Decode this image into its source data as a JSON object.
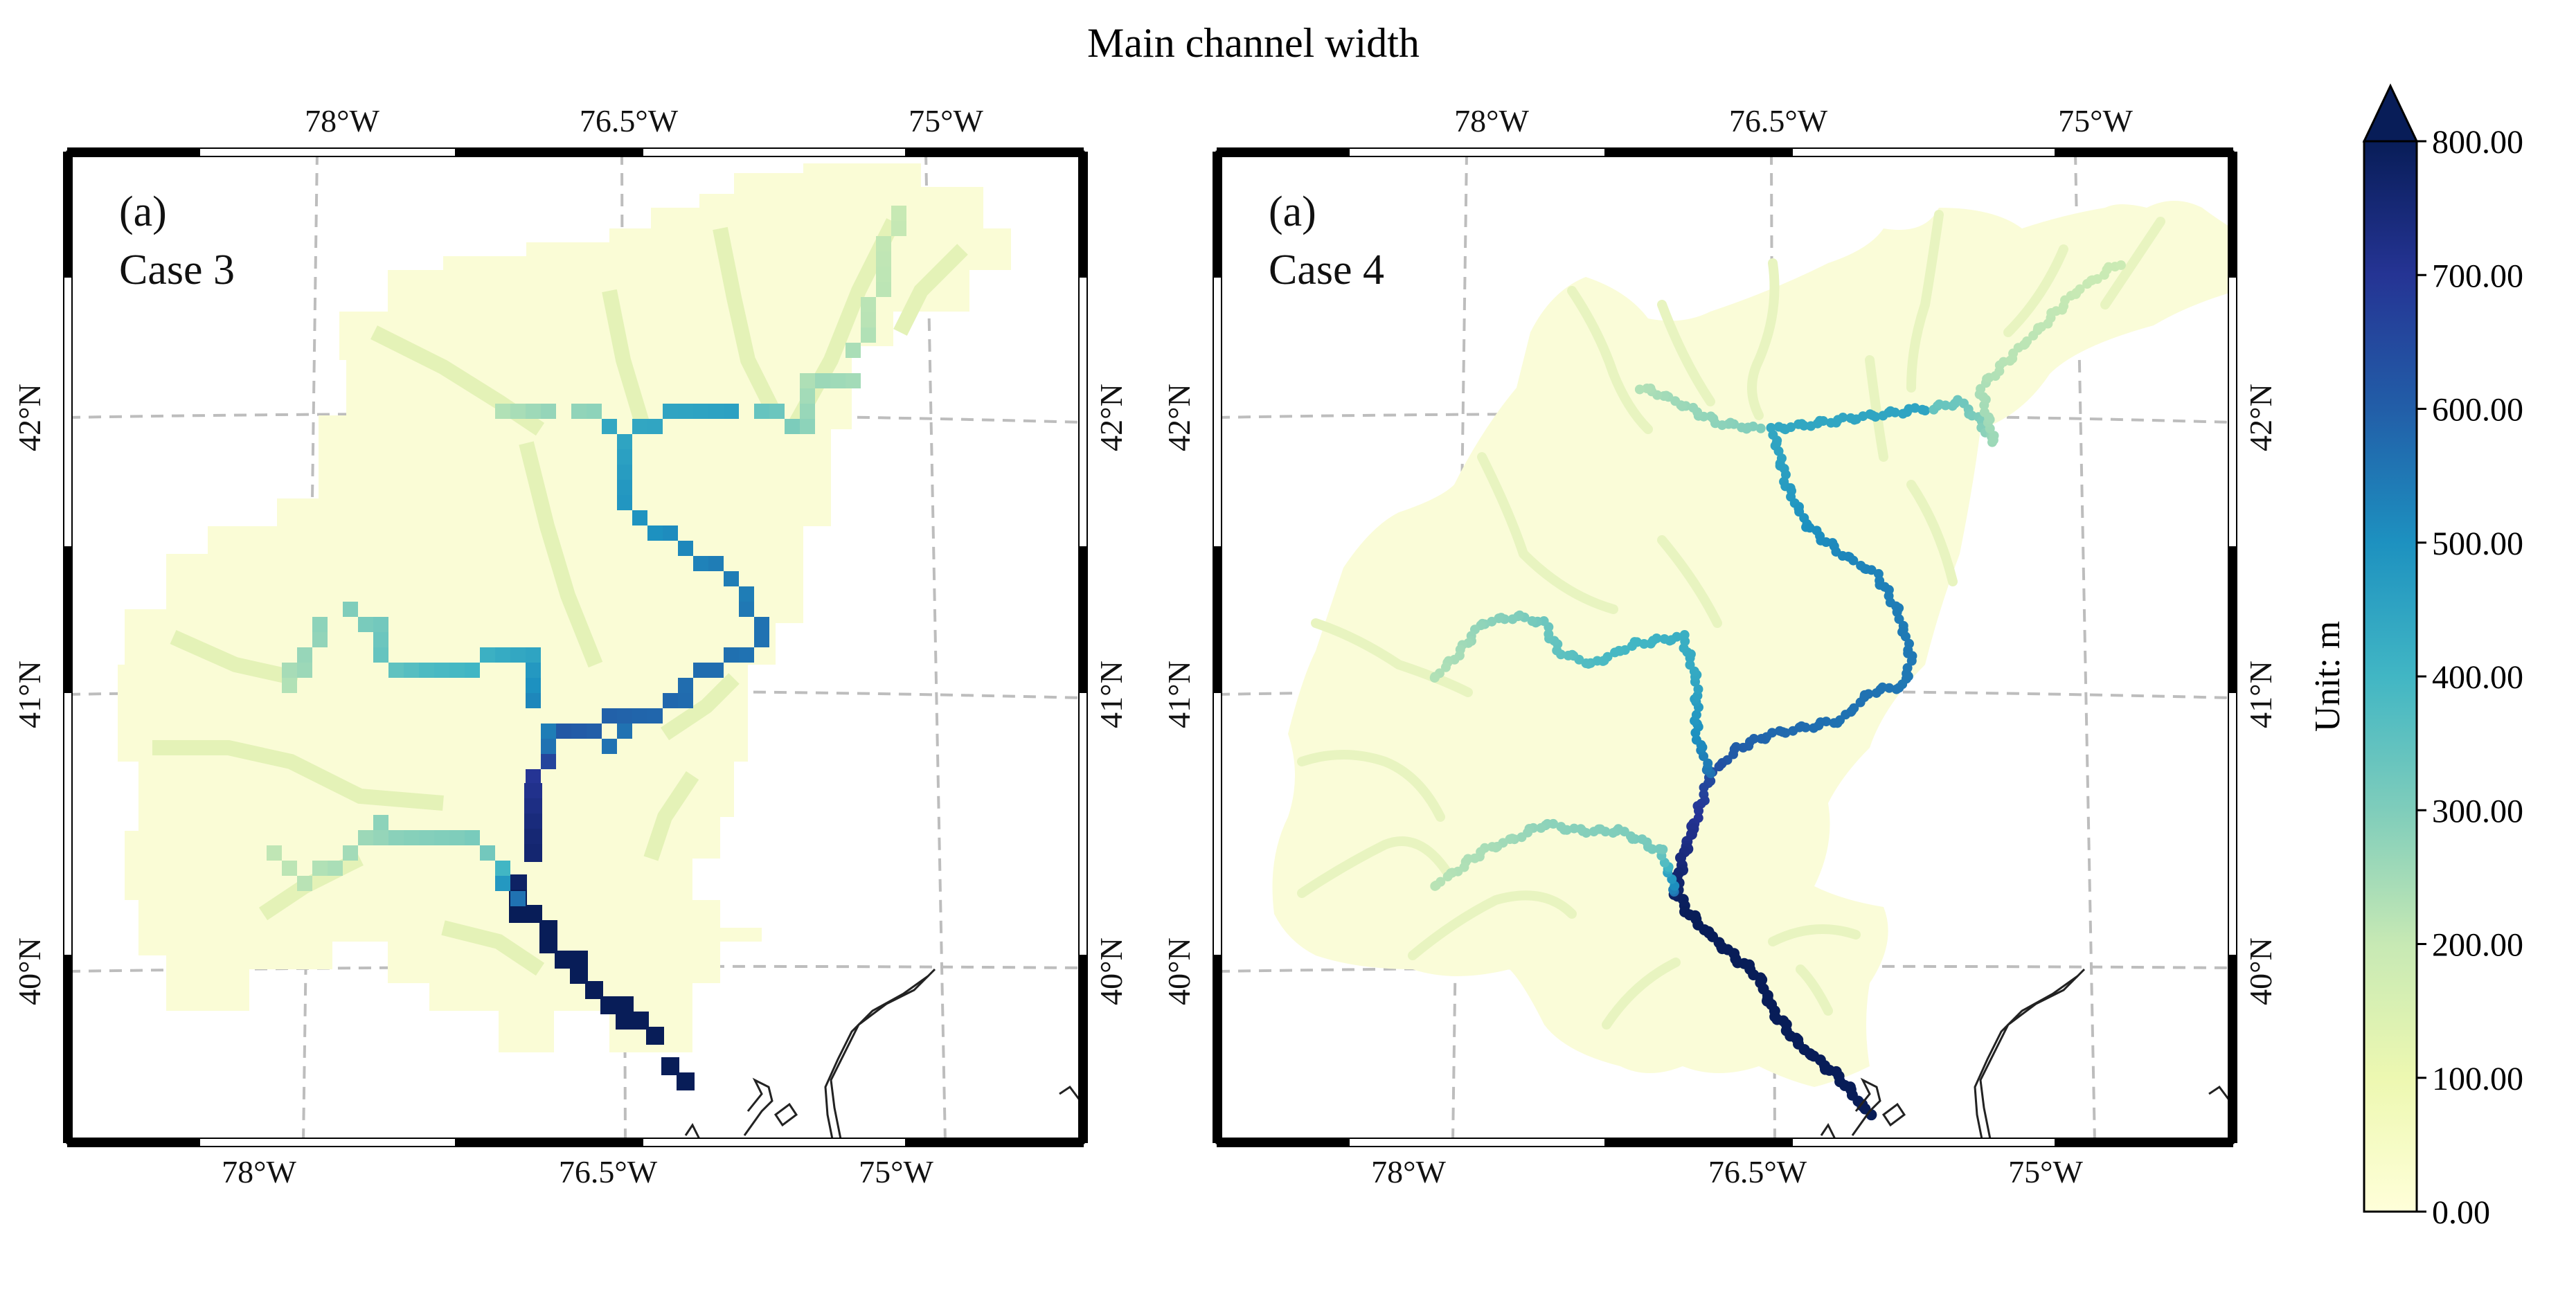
{
  "figure": {
    "title": "Main channel width"
  },
  "panels": [
    {
      "id": "case3",
      "label_letter": "(a)",
      "label_case": "Case 3",
      "style": "pixel-grid",
      "top_lon_ticks": [
        "78°W",
        "76.5°W",
        "75°W"
      ],
      "bottom_lon_ticks": [
        "78°W",
        "76.5°W",
        "75°W"
      ],
      "left_lat_ticks": [
        "42°N",
        "41°N",
        "40°N"
      ],
      "right_lat_ticks": [
        "42°N",
        "41°N",
        "40°N"
      ]
    },
    {
      "id": "case4",
      "label_letter": "(a)",
      "label_case": "Case 4",
      "style": "fine-network",
      "top_lon_ticks": [
        "78°W",
        "76.5°W",
        "75°W"
      ],
      "bottom_lon_ticks": [
        "78°W",
        "76.5°W",
        "75°W"
      ],
      "left_lat_ticks": [
        "42°N",
        "41°N",
        "40°N"
      ],
      "right_lat_ticks": [
        "42°N",
        "41°N",
        "40°N"
      ]
    }
  ],
  "colorbar": {
    "label": "Unit: m",
    "min": 0,
    "max": 800,
    "extend": "max",
    "colormap": "YlGnBu",
    "tick_labels": [
      "0.00",
      "100.00",
      "200.00",
      "300.00",
      "400.00",
      "500.00",
      "600.00",
      "700.00",
      "800.00"
    ],
    "colors": [
      "#ffffd9",
      "#edf8b1",
      "#c7e9b4",
      "#7fcdbb",
      "#41b6c4",
      "#1d91c0",
      "#225ea8",
      "#253494",
      "#081d58"
    ]
  }
}
